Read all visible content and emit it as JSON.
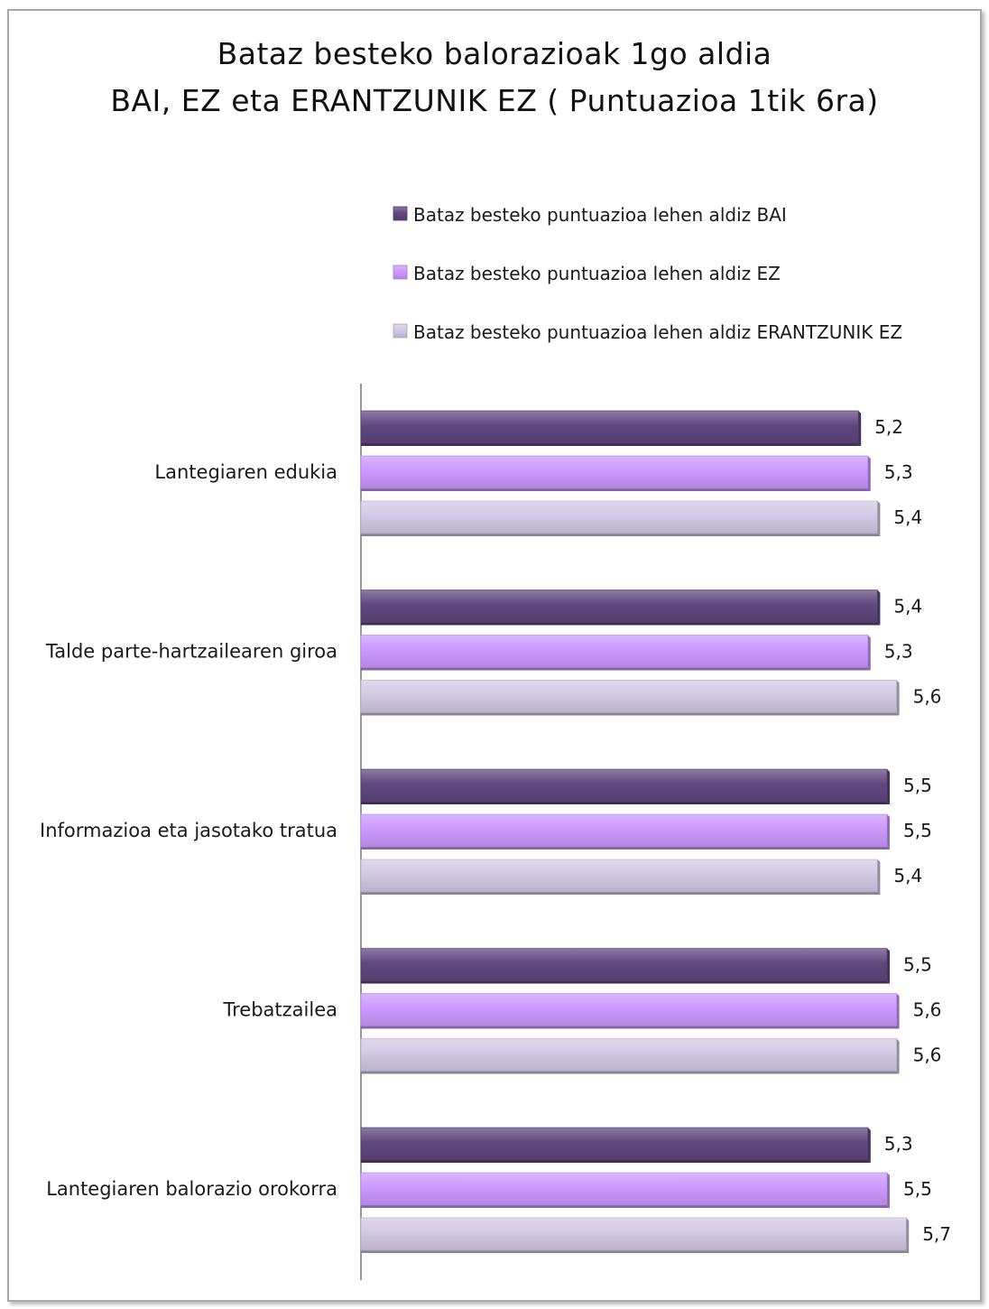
{
  "chart_data": {
    "type": "bar",
    "orientation": "horizontal",
    "title": "Bataz besteko balorazioak 1go aldia",
    "subtitle": "BAI, EZ eta ERANTZUNIK  EZ ( Puntuazioa  1tik 6ra)",
    "xlabel": "",
    "ylabel": "",
    "xlim": [
      0,
      6
    ],
    "grid": false,
    "legend_position": "top-right",
    "categories": [
      "Lantegiaren edukia",
      "Talde parte-hartzailearen giroa",
      "Informazioa eta jasotako tratua",
      "Trebatzailea",
      "Lantegiaren  balorazio orokorra"
    ],
    "series": [
      {
        "name": "Bataz besteko puntuazioa lehen aldiz BAI",
        "color": "#60487f",
        "values": [
          5.2,
          5.4,
          5.5,
          5.5,
          5.3
        ],
        "labels": [
          "5,2",
          "5,4",
          "5,5",
          "5,5",
          "5,3"
        ]
      },
      {
        "name": "Bataz besteko puntuazioa lehen aldiz EZ",
        "color": "#cc99ff",
        "values": [
          5.3,
          5.3,
          5.5,
          5.6,
          5.5
        ],
        "labels": [
          "5,3",
          "5,3",
          "5,5",
          "5,6",
          "5,5"
        ]
      },
      {
        "name": "Bataz besteko puntuazioa lehen aldiz ERANTZUNIK EZ",
        "color": "#d4c9e4",
        "values": [
          5.4,
          5.6,
          5.4,
          5.6,
          5.7
        ],
        "labels": [
          "5,4",
          "5,6",
          "5,4",
          "5,6",
          "5,7"
        ]
      }
    ]
  }
}
